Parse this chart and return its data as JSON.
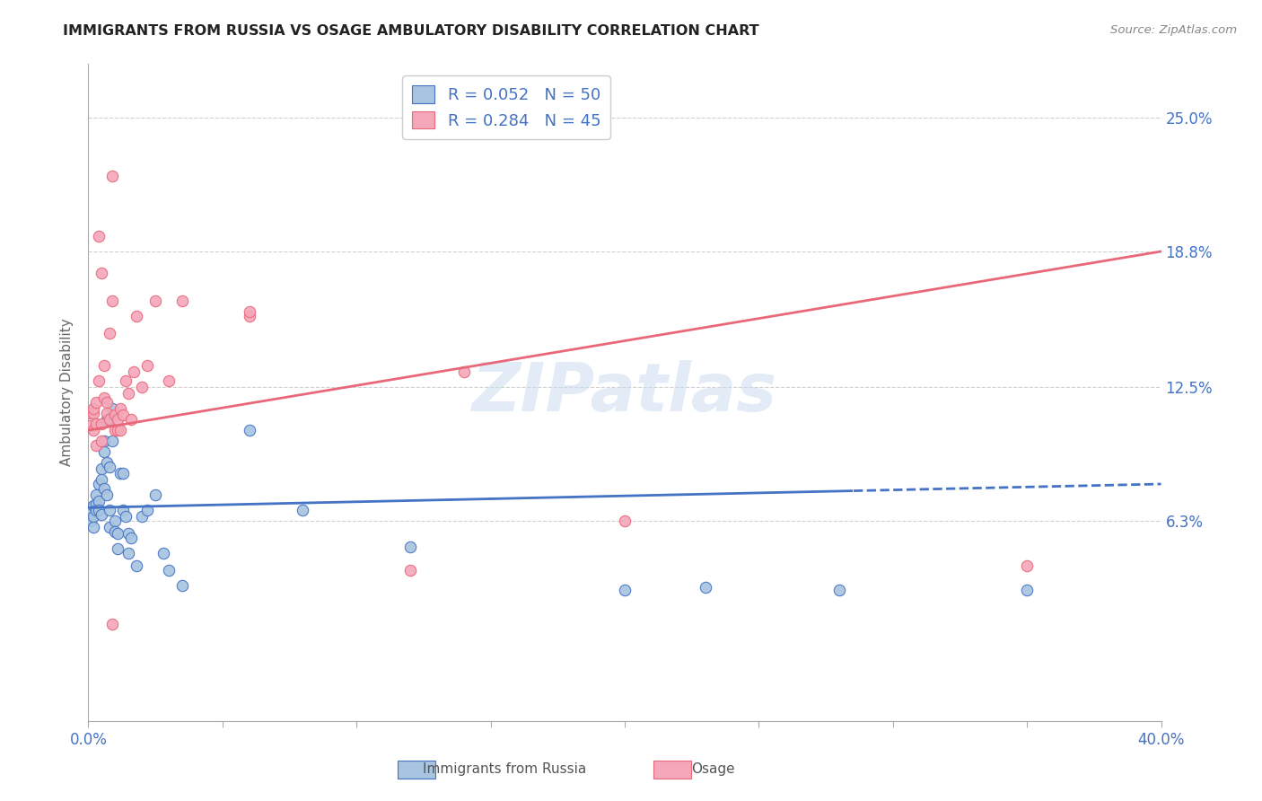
{
  "title": "IMMIGRANTS FROM RUSSIA VS OSAGE AMBULATORY DISABILITY CORRELATION CHART",
  "source": "Source: ZipAtlas.com",
  "ylabel": "Ambulatory Disability",
  "yticks": [
    "6.3%",
    "12.5%",
    "18.8%",
    "25.0%"
  ],
  "ytick_vals": [
    0.063,
    0.125,
    0.188,
    0.25
  ],
  "legend_r_n_color": "#4472c4",
  "xmin": 0.0,
  "xmax": 0.4,
  "ymin": -0.03,
  "ymax": 0.275,
  "blue_scatter": [
    [
      0.001,
      0.068
    ],
    [
      0.001,
      0.063
    ],
    [
      0.002,
      0.07
    ],
    [
      0.002,
      0.065
    ],
    [
      0.002,
      0.06
    ],
    [
      0.003,
      0.071
    ],
    [
      0.003,
      0.068
    ],
    [
      0.003,
      0.075
    ],
    [
      0.004,
      0.072
    ],
    [
      0.004,
      0.068
    ],
    [
      0.004,
      0.08
    ],
    [
      0.005,
      0.087
    ],
    [
      0.005,
      0.066
    ],
    [
      0.005,
      0.082
    ],
    [
      0.006,
      0.078
    ],
    [
      0.006,
      0.095
    ],
    [
      0.006,
      0.1
    ],
    [
      0.007,
      0.11
    ],
    [
      0.007,
      0.075
    ],
    [
      0.007,
      0.09
    ],
    [
      0.008,
      0.068
    ],
    [
      0.008,
      0.06
    ],
    [
      0.008,
      0.088
    ],
    [
      0.009,
      0.1
    ],
    [
      0.009,
      0.115
    ],
    [
      0.01,
      0.063
    ],
    [
      0.01,
      0.058
    ],
    [
      0.011,
      0.057
    ],
    [
      0.011,
      0.05
    ],
    [
      0.012,
      0.085
    ],
    [
      0.013,
      0.085
    ],
    [
      0.013,
      0.068
    ],
    [
      0.014,
      0.065
    ],
    [
      0.015,
      0.048
    ],
    [
      0.015,
      0.057
    ],
    [
      0.016,
      0.055
    ],
    [
      0.018,
      0.042
    ],
    [
      0.02,
      0.065
    ],
    [
      0.022,
      0.068
    ],
    [
      0.025,
      0.075
    ],
    [
      0.028,
      0.048
    ],
    [
      0.03,
      0.04
    ],
    [
      0.035,
      0.033
    ],
    [
      0.06,
      0.105
    ],
    [
      0.08,
      0.068
    ],
    [
      0.12,
      0.051
    ],
    [
      0.2,
      0.031
    ],
    [
      0.23,
      0.032
    ],
    [
      0.28,
      0.031
    ],
    [
      0.35,
      0.031
    ]
  ],
  "pink_scatter": [
    [
      0.001,
      0.107
    ],
    [
      0.001,
      0.113
    ],
    [
      0.002,
      0.113
    ],
    [
      0.002,
      0.115
    ],
    [
      0.002,
      0.105
    ],
    [
      0.003,
      0.118
    ],
    [
      0.003,
      0.108
    ],
    [
      0.003,
      0.098
    ],
    [
      0.004,
      0.195
    ],
    [
      0.004,
      0.128
    ],
    [
      0.005,
      0.108
    ],
    [
      0.005,
      0.1
    ],
    [
      0.005,
      0.178
    ],
    [
      0.006,
      0.12
    ],
    [
      0.006,
      0.135
    ],
    [
      0.007,
      0.118
    ],
    [
      0.007,
      0.113
    ],
    [
      0.008,
      0.11
    ],
    [
      0.008,
      0.15
    ],
    [
      0.009,
      0.223
    ],
    [
      0.009,
      0.165
    ],
    [
      0.009,
      0.015
    ],
    [
      0.01,
      0.112
    ],
    [
      0.01,
      0.105
    ],
    [
      0.011,
      0.105
    ],
    [
      0.011,
      0.11
    ],
    [
      0.012,
      0.115
    ],
    [
      0.012,
      0.105
    ],
    [
      0.013,
      0.112
    ],
    [
      0.014,
      0.128
    ],
    [
      0.015,
      0.122
    ],
    [
      0.016,
      0.11
    ],
    [
      0.017,
      0.132
    ],
    [
      0.018,
      0.158
    ],
    [
      0.02,
      0.125
    ],
    [
      0.022,
      0.135
    ],
    [
      0.025,
      0.165
    ],
    [
      0.03,
      0.128
    ],
    [
      0.035,
      0.165
    ],
    [
      0.06,
      0.158
    ],
    [
      0.06,
      0.16
    ],
    [
      0.12,
      0.04
    ],
    [
      0.14,
      0.132
    ],
    [
      0.2,
      0.063
    ],
    [
      0.35,
      0.042
    ]
  ],
  "blue_line_color": "#4472c4",
  "pink_line_color": "#e8687a",
  "scatter_blue_color": "#a8c4e0",
  "scatter_pink_color": "#f4a7b9",
  "watermark": "ZIPatlas",
  "background_color": "#ffffff",
  "grid_color": "#d0d0d0",
  "blue_line_solid_end": 0.285,
  "legend_label_blue": "R = 0.052   N = 50",
  "legend_label_pink": "R = 0.284   N = 45",
  "bottom_legend_blue": "Immigrants from Russia",
  "bottom_legend_pink": "Osage"
}
